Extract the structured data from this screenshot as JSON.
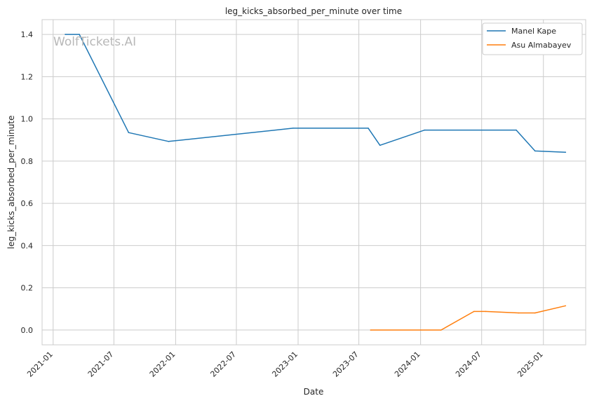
{
  "chart_data": {
    "type": "line",
    "title": "leg_kicks_absorbed_per_minute over time",
    "xlabel": "Date",
    "ylabel": "leg_kicks_absorbed_per_minute",
    "watermark": "WolfTickets.AI",
    "grid": true,
    "legend_position": "top-right",
    "xlim": [
      "2020-11-29",
      "2025-05-07"
    ],
    "ylim": [
      -0.07,
      1.47
    ],
    "x_ticks": [
      "2021-01",
      "2021-07",
      "2022-01",
      "2022-07",
      "2023-01",
      "2023-07",
      "2024-01",
      "2024-07",
      "2025-01"
    ],
    "y_ticks": [
      "0.0",
      "0.2",
      "0.4",
      "0.6",
      "0.8",
      "1.0",
      "1.2",
      "1.4"
    ],
    "series": [
      {
        "name": "Manel Kape",
        "color": "#1f77b4",
        "points": [
          {
            "x": "2021-02-06",
            "y": 1.4
          },
          {
            "x": "2021-03-20",
            "y": 1.4
          },
          {
            "x": "2021-08-14",
            "y": 0.935
          },
          {
            "x": "2021-12-11",
            "y": 0.893
          },
          {
            "x": "2022-12-17",
            "y": 0.956
          },
          {
            "x": "2023-07-29",
            "y": 0.956
          },
          {
            "x": "2023-09-02",
            "y": 0.875
          },
          {
            "x": "2024-01-13",
            "y": 0.947
          },
          {
            "x": "2024-10-12",
            "y": 0.947
          },
          {
            "x": "2024-12-07",
            "y": 0.848
          },
          {
            "x": "2025-03-08",
            "y": 0.842
          }
        ]
      },
      {
        "name": "Asu Almabayev",
        "color": "#ff7f0e",
        "points": [
          {
            "x": "2023-08-05",
            "y": 0.0
          },
          {
            "x": "2024-03-02",
            "y": 0.0
          },
          {
            "x": "2024-06-08",
            "y": 0.088
          },
          {
            "x": "2024-07-13",
            "y": 0.088
          },
          {
            "x": "2024-10-19",
            "y": 0.081
          },
          {
            "x": "2024-12-07",
            "y": 0.081
          },
          {
            "x": "2025-03-08",
            "y": 0.115
          }
        ]
      }
    ]
  }
}
